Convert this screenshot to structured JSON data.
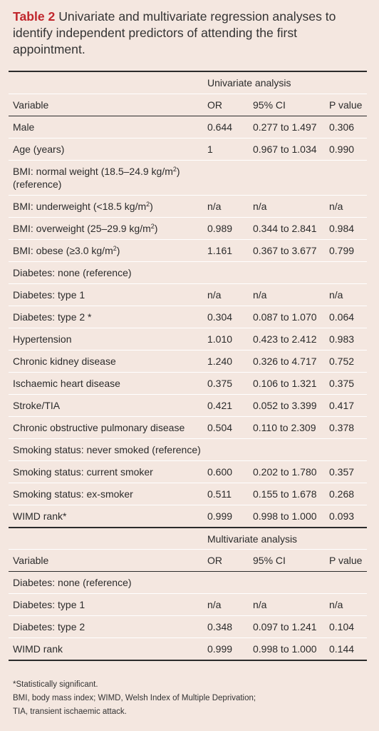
{
  "title": {
    "lead": "Table 2",
    "text": "Univariate and multivariate regression analyses to identify independent predictors of attending the first appointment."
  },
  "univariate": {
    "heading": "Univariate analysis",
    "columns": [
      "Variable",
      "OR",
      "95% CI",
      "P value"
    ],
    "rows": [
      {
        "variable": "Male",
        "or": "0.644",
        "ci": "0.277 to 1.497",
        "p": "0.306"
      },
      {
        "variable": "Age (years)",
        "or": "1",
        "ci": "0.967 to 1.034",
        "p": "0.990"
      },
      {
        "variable": "BMI: normal weight (18.5–24.9 kg/m",
        "sup": "2",
        "after": ")",
        "line2": "(reference)",
        "or": "",
        "ci": "",
        "p": ""
      },
      {
        "variable": "BMI: underweight (<18.5 kg/m",
        "sup": "2",
        "after": ")",
        "or": "n/a",
        "ci": "n/a",
        "p": "n/a"
      },
      {
        "variable": "BMI: overweight (25–29.9 kg/m",
        "sup": "2",
        "after": ")",
        "or": "0.989",
        "ci": "0.344 to 2.841",
        "p": "0.984"
      },
      {
        "variable": "BMI: obese (≥3.0 kg/m",
        "sup": "2",
        "after": ")",
        "or": "1.161",
        "ci": "0.367 to 3.677",
        "p": "0.799"
      },
      {
        "variable": "Diabetes: none (reference)",
        "or": "",
        "ci": "",
        "p": ""
      },
      {
        "variable": "Diabetes: type 1",
        "or": "n/a",
        "ci": "n/a",
        "p": "n/a"
      },
      {
        "variable": "Diabetes: type 2 *",
        "or": "0.304",
        "ci": "0.087 to 1.070",
        "p": "0.064"
      },
      {
        "variable": "Hypertension",
        "or": "1.010",
        "ci": "0.423 to 2.412",
        "p": "0.983"
      },
      {
        "variable": "Chronic kidney disease",
        "or": "1.240",
        "ci": "0.326 to 4.717",
        "p": "0.752"
      },
      {
        "variable": "Ischaemic heart disease",
        "or": "0.375",
        "ci": "0.106 to 1.321",
        "p": "0.375"
      },
      {
        "variable": "Stroke/TIA",
        "or": "0.421",
        "ci": "0.052 to 3.399",
        "p": "0.417"
      },
      {
        "variable": "Chronic obstructive pulmonary disease",
        "or": "0.504",
        "ci": "0.110 to 2.309",
        "p": "0.378"
      },
      {
        "variable": "Smoking status: never smoked (reference)",
        "or": "",
        "ci": "",
        "p": ""
      },
      {
        "variable": "Smoking status: current smoker",
        "or": "0.600",
        "ci": "0.202 to 1.780",
        "p": "0.357"
      },
      {
        "variable": "Smoking status: ex-smoker",
        "or": "0.511",
        "ci": "0.155 to 1.678",
        "p": "0.268"
      },
      {
        "variable": "WIMD rank*",
        "or": "0.999",
        "ci": "0.998 to 1.000",
        "p": "0.093"
      }
    ]
  },
  "multivariate": {
    "heading": "Multivariate analysis",
    "columns": [
      "Variable",
      "OR",
      "95% CI",
      "P value"
    ],
    "rows": [
      {
        "variable": "Diabetes: none (reference)",
        "or": "",
        "ci": "",
        "p": ""
      },
      {
        "variable": "Diabetes: type 1",
        "or": "n/a",
        "ci": "n/a",
        "p": "n/a"
      },
      {
        "variable": "Diabetes: type 2",
        "or": "0.348",
        "ci": "0.097 to 1.241",
        "p": "0.104"
      },
      {
        "variable": "WIMD rank",
        "or": "0.999",
        "ci": "0.998 to 1.000",
        "p": "0.144"
      }
    ]
  },
  "footnotes": [
    "*Statistically significant.",
    "BMI, body mass index; WIMD, Welsh Index of Multiple Deprivation;",
    "TIA, transient ischaemic attack."
  ],
  "colors": {
    "background": "#f4e7e0",
    "accent": "#c0262c",
    "rule": "#2b2b2b"
  }
}
